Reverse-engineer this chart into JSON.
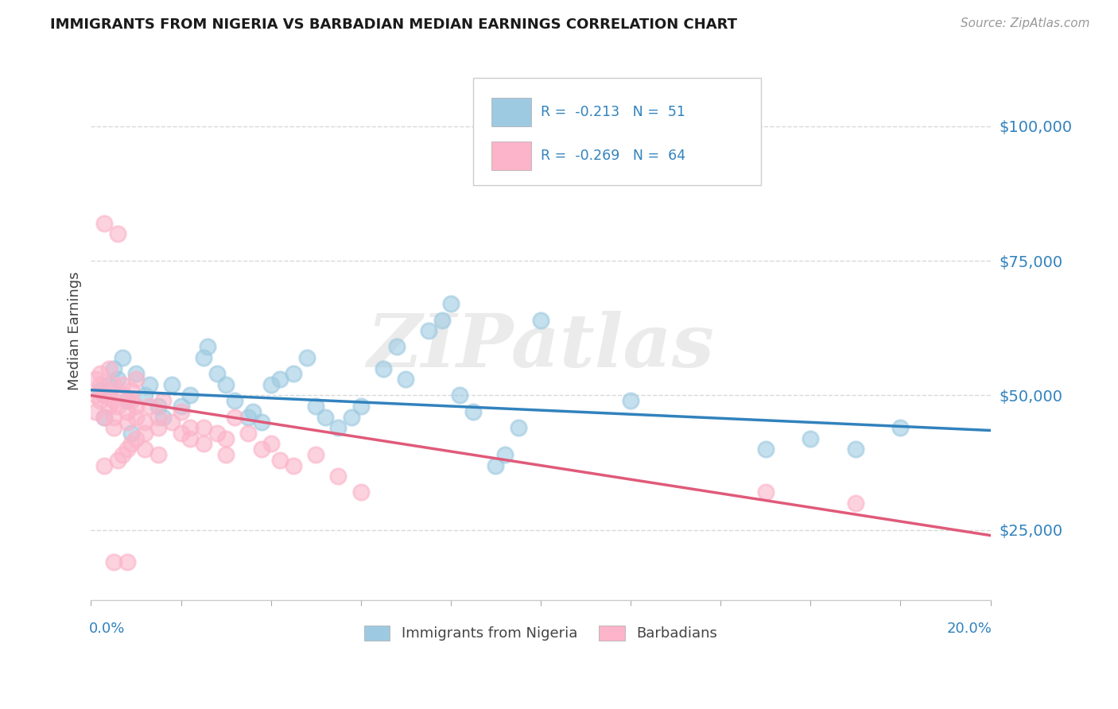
{
  "title": "IMMIGRANTS FROM NIGERIA VS BARBADIAN MEDIAN EARNINGS CORRELATION CHART",
  "source": "Source: ZipAtlas.com",
  "ylabel": "Median Earnings",
  "ytick_labels": [
    "$25,000",
    "$50,000",
    "$75,000",
    "$100,000"
  ],
  "ytick_values": [
    25000,
    50000,
    75000,
    100000
  ],
  "xlim": [
    0.0,
    0.2
  ],
  "ylim": [
    12000,
    112000
  ],
  "scatter_nigeria": [
    [
      0.002,
      51000
    ],
    [
      0.003,
      46000
    ],
    [
      0.004,
      52000
    ],
    [
      0.005,
      55000
    ],
    [
      0.006,
      53000
    ],
    [
      0.007,
      57000
    ],
    [
      0.008,
      49000
    ],
    [
      0.009,
      43000
    ],
    [
      0.01,
      54000
    ],
    [
      0.012,
      50000
    ],
    [
      0.013,
      52000
    ],
    [
      0.015,
      48000
    ],
    [
      0.016,
      46000
    ],
    [
      0.018,
      52000
    ],
    [
      0.02,
      48000
    ],
    [
      0.022,
      50000
    ],
    [
      0.025,
      57000
    ],
    [
      0.026,
      59000
    ],
    [
      0.028,
      54000
    ],
    [
      0.03,
      52000
    ],
    [
      0.032,
      49000
    ],
    [
      0.035,
      46000
    ],
    [
      0.036,
      47000
    ],
    [
      0.038,
      45000
    ],
    [
      0.04,
      52000
    ],
    [
      0.042,
      53000
    ],
    [
      0.045,
      54000
    ],
    [
      0.048,
      57000
    ],
    [
      0.05,
      48000
    ],
    [
      0.052,
      46000
    ],
    [
      0.055,
      44000
    ],
    [
      0.058,
      46000
    ],
    [
      0.06,
      48000
    ],
    [
      0.065,
      55000
    ],
    [
      0.068,
      59000
    ],
    [
      0.07,
      53000
    ],
    [
      0.075,
      62000
    ],
    [
      0.078,
      64000
    ],
    [
      0.08,
      67000
    ],
    [
      0.082,
      50000
    ],
    [
      0.085,
      47000
    ],
    [
      0.09,
      37000
    ],
    [
      0.092,
      39000
    ],
    [
      0.095,
      44000
    ],
    [
      0.1,
      64000
    ],
    [
      0.12,
      49000
    ],
    [
      0.15,
      40000
    ],
    [
      0.16,
      42000
    ],
    [
      0.17,
      40000
    ],
    [
      0.18,
      44000
    ]
  ],
  "scatter_barbadian": [
    [
      0.001,
      50000
    ],
    [
      0.001,
      53000
    ],
    [
      0.001,
      47000
    ],
    [
      0.002,
      54000
    ],
    [
      0.002,
      49000
    ],
    [
      0.002,
      52000
    ],
    [
      0.003,
      82000
    ],
    [
      0.003,
      46000
    ],
    [
      0.003,
      50000
    ],
    [
      0.004,
      51000
    ],
    [
      0.004,
      48000
    ],
    [
      0.004,
      55000
    ],
    [
      0.005,
      49000
    ],
    [
      0.005,
      52000
    ],
    [
      0.005,
      46000
    ],
    [
      0.005,
      44000
    ],
    [
      0.006,
      80000
    ],
    [
      0.006,
      48000
    ],
    [
      0.007,
      52000
    ],
    [
      0.007,
      50000
    ],
    [
      0.008,
      47000
    ],
    [
      0.008,
      45000
    ],
    [
      0.009,
      51000
    ],
    [
      0.009,
      49000
    ],
    [
      0.01,
      48000
    ],
    [
      0.01,
      46000
    ],
    [
      0.01,
      53000
    ],
    [
      0.012,
      45000
    ],
    [
      0.012,
      43000
    ],
    [
      0.013,
      48000
    ],
    [
      0.015,
      46000
    ],
    [
      0.015,
      44000
    ],
    [
      0.016,
      49000
    ],
    [
      0.018,
      45000
    ],
    [
      0.02,
      43000
    ],
    [
      0.02,
      47000
    ],
    [
      0.022,
      44000
    ],
    [
      0.022,
      42000
    ],
    [
      0.025,
      44000
    ],
    [
      0.025,
      41000
    ],
    [
      0.028,
      43000
    ],
    [
      0.03,
      42000
    ],
    [
      0.03,
      39000
    ],
    [
      0.032,
      46000
    ],
    [
      0.035,
      43000
    ],
    [
      0.038,
      40000
    ],
    [
      0.04,
      41000
    ],
    [
      0.042,
      38000
    ],
    [
      0.045,
      37000
    ],
    [
      0.05,
      39000
    ],
    [
      0.055,
      35000
    ],
    [
      0.06,
      32000
    ],
    [
      0.005,
      19000
    ],
    [
      0.008,
      19000
    ],
    [
      0.15,
      32000
    ],
    [
      0.17,
      30000
    ],
    [
      0.003,
      37000
    ],
    [
      0.006,
      38000
    ],
    [
      0.007,
      39000
    ],
    [
      0.008,
      40000
    ],
    [
      0.009,
      41000
    ],
    [
      0.01,
      42000
    ],
    [
      0.012,
      40000
    ],
    [
      0.015,
      39000
    ]
  ],
  "line_nigeria": {
    "x0": 0.0,
    "y0": 51000,
    "x1": 0.2,
    "y1": 43500
  },
  "line_barbadian": {
    "x0": 0.0,
    "y0": 50000,
    "x1": 0.2,
    "y1": 24000
  },
  "nigeria_scatter_color": "#9ecae1",
  "barbadian_scatter_color": "#fbb4c9",
  "nigeria_line_color": "#3182bd",
  "barbadian_line_color": "#e05a7a",
  "ytick_color": "#3182bd",
  "watermark": "ZIPatlas",
  "background_color": "#ffffff",
  "grid_color": "#d8d8d8"
}
